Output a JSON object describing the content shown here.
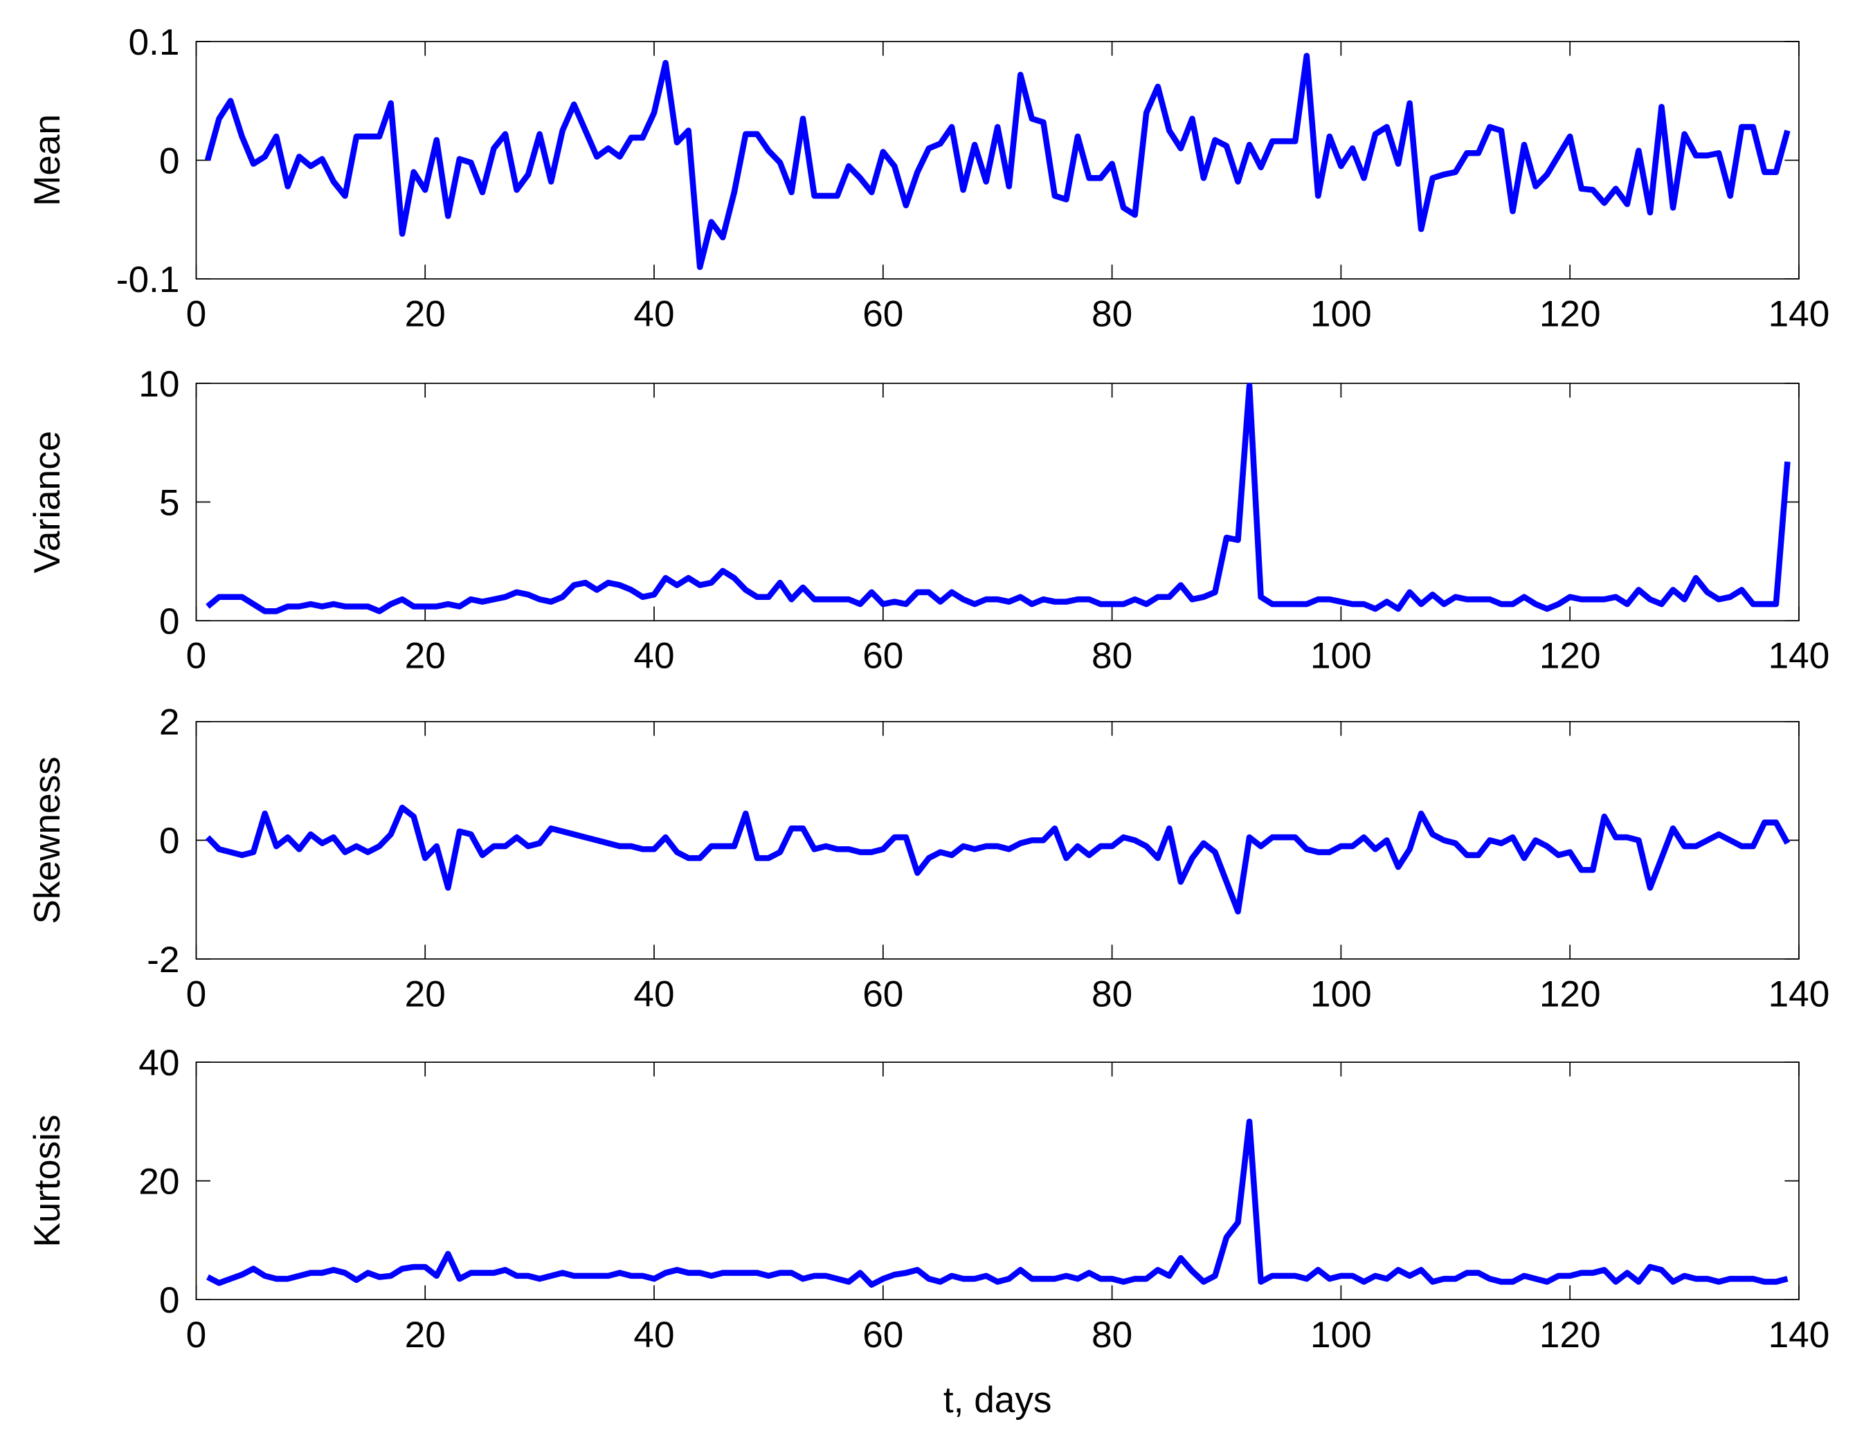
{
  "chart_data": [
    {
      "type": "line",
      "ylabel": "Mean",
      "color": "#0000ff",
      "xlim": [
        0,
        140
      ],
      "xticks": [
        0,
        20,
        40,
        60,
        80,
        100,
        120,
        140
      ],
      "ylim": [
        -0.1,
        0.1
      ],
      "yticks": [
        -0.1,
        0,
        0.1
      ],
      "x": [
        1,
        2,
        3,
        4,
        5,
        6,
        7,
        8,
        9,
        10,
        11,
        12,
        13,
        14,
        15,
        16,
        17,
        18,
        19,
        20,
        21,
        22,
        23,
        24,
        25,
        26,
        27,
        28,
        29,
        30,
        31,
        32,
        33,
        34,
        35,
        36,
        37,
        38,
        39,
        40,
        41,
        42,
        43,
        44,
        45,
        46,
        47,
        48,
        49,
        50,
        51,
        52,
        53,
        54,
        55,
        56,
        57,
        58,
        59,
        60,
        61,
        62,
        63,
        64,
        65,
        66,
        67,
        68,
        69,
        70,
        71,
        72,
        73,
        74,
        75,
        76,
        77,
        78,
        79,
        80,
        81,
        82,
        83,
        84,
        85,
        86,
        87,
        88,
        89,
        90,
        91,
        92,
        93,
        94,
        95,
        96,
        97,
        98,
        99,
        100,
        101,
        102,
        103,
        104,
        105,
        106,
        107,
        108,
        109,
        110,
        111,
        112,
        113,
        114,
        115,
        116,
        117,
        118,
        119,
        120,
        121,
        122,
        123,
        124,
        125,
        126,
        127,
        128,
        129,
        130,
        131,
        132,
        133,
        134,
        135,
        136,
        137,
        138,
        139
      ],
      "values": [
        0,
        0.035,
        0.05,
        0.02,
        -0.003,
        0.003,
        0.02,
        -0.022,
        0.003,
        -0.005,
        0.001,
        -0.018,
        -0.03,
        0.02,
        0.02,
        0.02,
        0.048,
        -0.062,
        -0.01,
        -0.025,
        0.017,
        -0.047,
        0.001,
        -0.002,
        -0.027,
        0.01,
        0.022,
        -0.025,
        -0.012,
        0.022,
        -0.018,
        0.025,
        0.047,
        0.025,
        0.003,
        0.01,
        0.003,
        0.019,
        0.019,
        0.04,
        0.082,
        0.015,
        0.025,
        -0.09,
        -0.052,
        -0.065,
        -0.027,
        0.022,
        0.022,
        0.008,
        -0.002,
        -0.027,
        0.035,
        -0.03,
        -0.03,
        -0.03,
        -0.005,
        -0.015,
        -0.027,
        0.007,
        -0.005,
        -0.038,
        -0.01,
        0.01,
        0.014,
        0.028,
        -0.025,
        0.013,
        -0.018,
        0.028,
        -0.022,
        0.072,
        0.035,
        0.032,
        -0.03,
        -0.033,
        0.02,
        -0.015,
        -0.015,
        -0.003,
        -0.04,
        -0.046,
        0.04,
        0.062,
        0.025,
        0.01,
        0.035,
        -0.015,
        0.017,
        0.012,
        -0.018,
        0.013,
        -0.006,
        0.016,
        0.016,
        0.016,
        0.088,
        -0.03,
        0.02,
        -0.005,
        0.01,
        -0.015,
        0.022,
        0.028,
        -0.003,
        0.048,
        -0.058,
        -0.015,
        -0.012,
        -0.01,
        0.006,
        0.006,
        0.028,
        0.025,
        -0.043,
        0.013,
        -0.022,
        -0.012,
        0.004,
        0.02,
        -0.024,
        -0.025,
        -0.036,
        -0.024,
        -0.037,
        0.008,
        -0.044,
        0.045,
        -0.04,
        0.022,
        0.004,
        0.004,
        0.006,
        -0.03,
        0.028,
        0.028,
        -0.01,
        -0.01,
        0.025
      ]
    },
    {
      "type": "line",
      "ylabel": "Variance",
      "color": "#0000ff",
      "xlim": [
        0,
        140
      ],
      "xticks": [
        0,
        20,
        40,
        60,
        80,
        100,
        120,
        140
      ],
      "ylim": [
        0,
        10
      ],
      "yticks": [
        0,
        5,
        10
      ],
      "x": [
        1,
        2,
        3,
        4,
        5,
        6,
        7,
        8,
        9,
        10,
        11,
        12,
        13,
        14,
        15,
        16,
        17,
        18,
        19,
        20,
        21,
        22,
        23,
        24,
        25,
        26,
        27,
        28,
        29,
        30,
        31,
        32,
        33,
        34,
        35,
        36,
        37,
        38,
        39,
        40,
        41,
        42,
        43,
        44,
        45,
        46,
        47,
        48,
        49,
        50,
        51,
        52,
        53,
        54,
        55,
        56,
        57,
        58,
        59,
        60,
        61,
        62,
        63,
        64,
        65,
        66,
        67,
        68,
        69,
        70,
        71,
        72,
        73,
        74,
        75,
        76,
        77,
        78,
        79,
        80,
        81,
        82,
        83,
        84,
        85,
        86,
        87,
        88,
        89,
        90,
        91,
        92,
        93,
        94,
        95,
        96,
        97,
        98,
        99,
        100,
        101,
        102,
        103,
        104,
        105,
        106,
        107,
        108,
        109,
        110,
        111,
        112,
        113,
        114,
        115,
        116,
        117,
        118,
        119,
        120,
        121,
        122,
        123,
        124,
        125,
        126,
        127,
        128,
        129,
        130,
        131,
        132,
        133,
        134,
        135,
        136,
        137,
        138,
        139
      ],
      "values": [
        0.6,
        1.0,
        1.0,
        1.0,
        0.7,
        0.4,
        0.4,
        0.6,
        0.6,
        0.7,
        0.6,
        0.7,
        0.6,
        0.6,
        0.6,
        0.4,
        0.7,
        0.9,
        0.6,
        0.6,
        0.6,
        0.7,
        0.6,
        0.9,
        0.8,
        0.9,
        1.0,
        1.2,
        1.1,
        0.9,
        0.8,
        1.0,
        1.5,
        1.6,
        1.3,
        1.6,
        1.5,
        1.3,
        1.0,
        1.1,
        1.8,
        1.5,
        1.8,
        1.5,
        1.6,
        2.1,
        1.8,
        1.3,
        1.0,
        1.0,
        1.6,
        0.9,
        1.4,
        0.9,
        0.9,
        0.9,
        0.9,
        0.7,
        1.2,
        0.7,
        0.8,
        0.7,
        1.2,
        1.2,
        0.8,
        1.2,
        0.9,
        0.7,
        0.9,
        0.9,
        0.8,
        1.0,
        0.7,
        0.9,
        0.8,
        0.8,
        0.9,
        0.9,
        0.7,
        0.7,
        0.7,
        0.9,
        0.7,
        1.0,
        1.0,
        1.5,
        0.9,
        1.0,
        1.2,
        3.5,
        3.4,
        9.9,
        1.0,
        0.7,
        0.7,
        0.7,
        0.7,
        0.9,
        0.9,
        0.8,
        0.7,
        0.7,
        0.5,
        0.8,
        0.5,
        1.2,
        0.7,
        1.1,
        0.7,
        1.0,
        0.9,
        0.9,
        0.9,
        0.7,
        0.7,
        1.0,
        0.7,
        0.5,
        0.7,
        1.0,
        0.9,
        0.9,
        0.9,
        1.0,
        0.7,
        1.3,
        0.9,
        0.7,
        1.3,
        0.9,
        1.8,
        1.2,
        0.9,
        1.0,
        1.3,
        0.7,
        0.7,
        0.7,
        6.7
      ]
    },
    {
      "type": "line",
      "ylabel": "Skewness",
      "color": "#0000ff",
      "xlim": [
        0,
        140
      ],
      "xticks": [
        0,
        20,
        40,
        60,
        80,
        100,
        120,
        140
      ],
      "ylim": [
        -2,
        2
      ],
      "yticks": [
        -2,
        0,
        2
      ],
      "x": [
        1,
        2,
        3,
        4,
        5,
        6,
        7,
        8,
        9,
        10,
        11,
        12,
        13,
        14,
        15,
        16,
        17,
        18,
        19,
        20,
        21,
        22,
        23,
        24,
        25,
        26,
        27,
        28,
        29,
        30,
        31,
        32,
        33,
        34,
        35,
        36,
        37,
        38,
        39,
        40,
        41,
        42,
        43,
        44,
        45,
        46,
        47,
        48,
        49,
        50,
        51,
        52,
        53,
        54,
        55,
        56,
        57,
        58,
        59,
        60,
        61,
        62,
        63,
        64,
        65,
        66,
        67,
        68,
        69,
        70,
        71,
        72,
        73,
        74,
        75,
        76,
        77,
        78,
        79,
        80,
        81,
        82,
        83,
        84,
        85,
        86,
        87,
        88,
        89,
        90,
        91,
        92,
        93,
        94,
        95,
        96,
        97,
        98,
        99,
        100,
        101,
        102,
        103,
        104,
        105,
        106,
        107,
        108,
        109,
        110,
        111,
        112,
        113,
        114,
        115,
        116,
        117,
        118,
        119,
        120,
        121,
        122,
        123,
        124,
        125,
        126,
        127,
        128,
        129,
        130,
        131,
        132,
        133,
        134,
        135,
        136,
        137,
        138,
        139
      ],
      "values": [
        0.05,
        -0.15,
        -0.2,
        -0.25,
        -0.2,
        0.45,
        -0.1,
        0.05,
        -0.15,
        0.1,
        -0.05,
        0.05,
        -0.2,
        -0.1,
        -0.2,
        -0.1,
        0.1,
        0.55,
        0.4,
        -0.3,
        -0.1,
        -0.8,
        0.15,
        0.1,
        -0.25,
        -0.1,
        -0.1,
        0.05,
        -0.1,
        -0.05,
        0.2,
        0.15,
        0.1,
        0.05,
        0,
        -0.05,
        -0.1,
        -0.1,
        -0.15,
        -0.15,
        0.05,
        -0.2,
        -0.3,
        -0.3,
        -0.1,
        -0.1,
        -0.1,
        0.45,
        -0.3,
        -0.3,
        -0.2,
        0.2,
        0.2,
        -0.15,
        -0.1,
        -0.15,
        -0.15,
        -0.2,
        -0.2,
        -0.15,
        0.05,
        0.05,
        -0.55,
        -0.3,
        -0.2,
        -0.25,
        -0.1,
        -0.15,
        -0.1,
        -0.1,
        -0.15,
        -0.05,
        0,
        0,
        0.2,
        -0.3,
        -0.1,
        -0.25,
        -0.1,
        -0.1,
        0.05,
        0,
        -0.1,
        -0.3,
        0.2,
        -0.7,
        -0.3,
        -0.05,
        -0.2,
        -0.7,
        -1.2,
        0.05,
        -0.1,
        0.05,
        0.05,
        0.05,
        -0.15,
        -0.2,
        -0.2,
        -0.1,
        -0.1,
        0.05,
        -0.15,
        0,
        -0.45,
        -0.15,
        0.45,
        0.1,
        0,
        -0.05,
        -0.25,
        -0.25,
        0,
        -0.05,
        0.05,
        -0.3,
        0,
        -0.1,
        -0.25,
        -0.2,
        -0.5,
        -0.5,
        0.4,
        0.05,
        0.05,
        0,
        -0.8,
        -0.3,
        0.2,
        -0.1,
        -0.1,
        0,
        0.1,
        0,
        -0.1,
        -0.1,
        0.3,
        0.3,
        -0.05
      ]
    },
    {
      "type": "line",
      "ylabel": "Kurtosis",
      "xlabel": "t, days",
      "color": "#0000ff",
      "xlim": [
        0,
        140
      ],
      "xticks": [
        0,
        20,
        40,
        60,
        80,
        100,
        120,
        140
      ],
      "ylim": [
        0,
        40
      ],
      "yticks": [
        0,
        20,
        40
      ],
      "x": [
        1,
        2,
        3,
        4,
        5,
        6,
        7,
        8,
        9,
        10,
        11,
        12,
        13,
        14,
        15,
        16,
        17,
        18,
        19,
        20,
        21,
        22,
        23,
        24,
        25,
        26,
        27,
        28,
        29,
        30,
        31,
        32,
        33,
        34,
        35,
        36,
        37,
        38,
        39,
        40,
        41,
        42,
        43,
        44,
        45,
        46,
        47,
        48,
        49,
        50,
        51,
        52,
        53,
        54,
        55,
        56,
        57,
        58,
        59,
        60,
        61,
        62,
        63,
        64,
        65,
        66,
        67,
        68,
        69,
        70,
        71,
        72,
        73,
        74,
        75,
        76,
        77,
        78,
        79,
        80,
        81,
        82,
        83,
        84,
        85,
        86,
        87,
        88,
        89,
        90,
        91,
        92,
        93,
        94,
        95,
        96,
        97,
        98,
        99,
        100,
        101,
        102,
        103,
        104,
        105,
        106,
        107,
        108,
        109,
        110,
        111,
        112,
        113,
        114,
        115,
        116,
        117,
        118,
        119,
        120,
        121,
        122,
        123,
        124,
        125,
        126,
        127,
        128,
        129,
        130,
        131,
        132,
        133,
        134,
        135,
        136,
        137,
        138,
        139
      ],
      "values": [
        3.8,
        2.8,
        3.5,
        4.2,
        5.2,
        4,
        3.5,
        3.5,
        4,
        4.5,
        4.5,
        5,
        4.5,
        3.3,
        4.5,
        3.8,
        4,
        5.2,
        5.5,
        5.5,
        4,
        7.7,
        3.5,
        4.5,
        4.5,
        4.5,
        5,
        4,
        4,
        3.5,
        4,
        4.5,
        4,
        4,
        4,
        4,
        4.5,
        4,
        4,
        3.5,
        4.5,
        5,
        4.5,
        4.5,
        4,
        4.5,
        4.5,
        4.5,
        4.5,
        4,
        4.5,
        4.5,
        3.5,
        4,
        4,
        3.5,
        3,
        4.5,
        2.5,
        3.5,
        4.2,
        4.5,
        5,
        3.5,
        3,
        4,
        3.5,
        3.5,
        4,
        3,
        3.5,
        5,
        3.5,
        3.5,
        3.5,
        4,
        3.5,
        4.5,
        3.5,
        3.5,
        3,
        3.5,
        3.5,
        5,
        4,
        7,
        4.8,
        3,
        4,
        10.5,
        13,
        30,
        3,
        4,
        4,
        4,
        3.5,
        5,
        3.5,
        4,
        4,
        3,
        4,
        3.5,
        5,
        4,
        5,
        3,
        3.5,
        3.5,
        4.5,
        4.5,
        3.5,
        3,
        3,
        4,
        3.5,
        3,
        4,
        4,
        4.5,
        4.5,
        5,
        3,
        4.5,
        3,
        5.5,
        5,
        3,
        4,
        3.5,
        3.5,
        3,
        3.5,
        3.5,
        3.5,
        3,
        3,
        3.5
      ]
    }
  ]
}
